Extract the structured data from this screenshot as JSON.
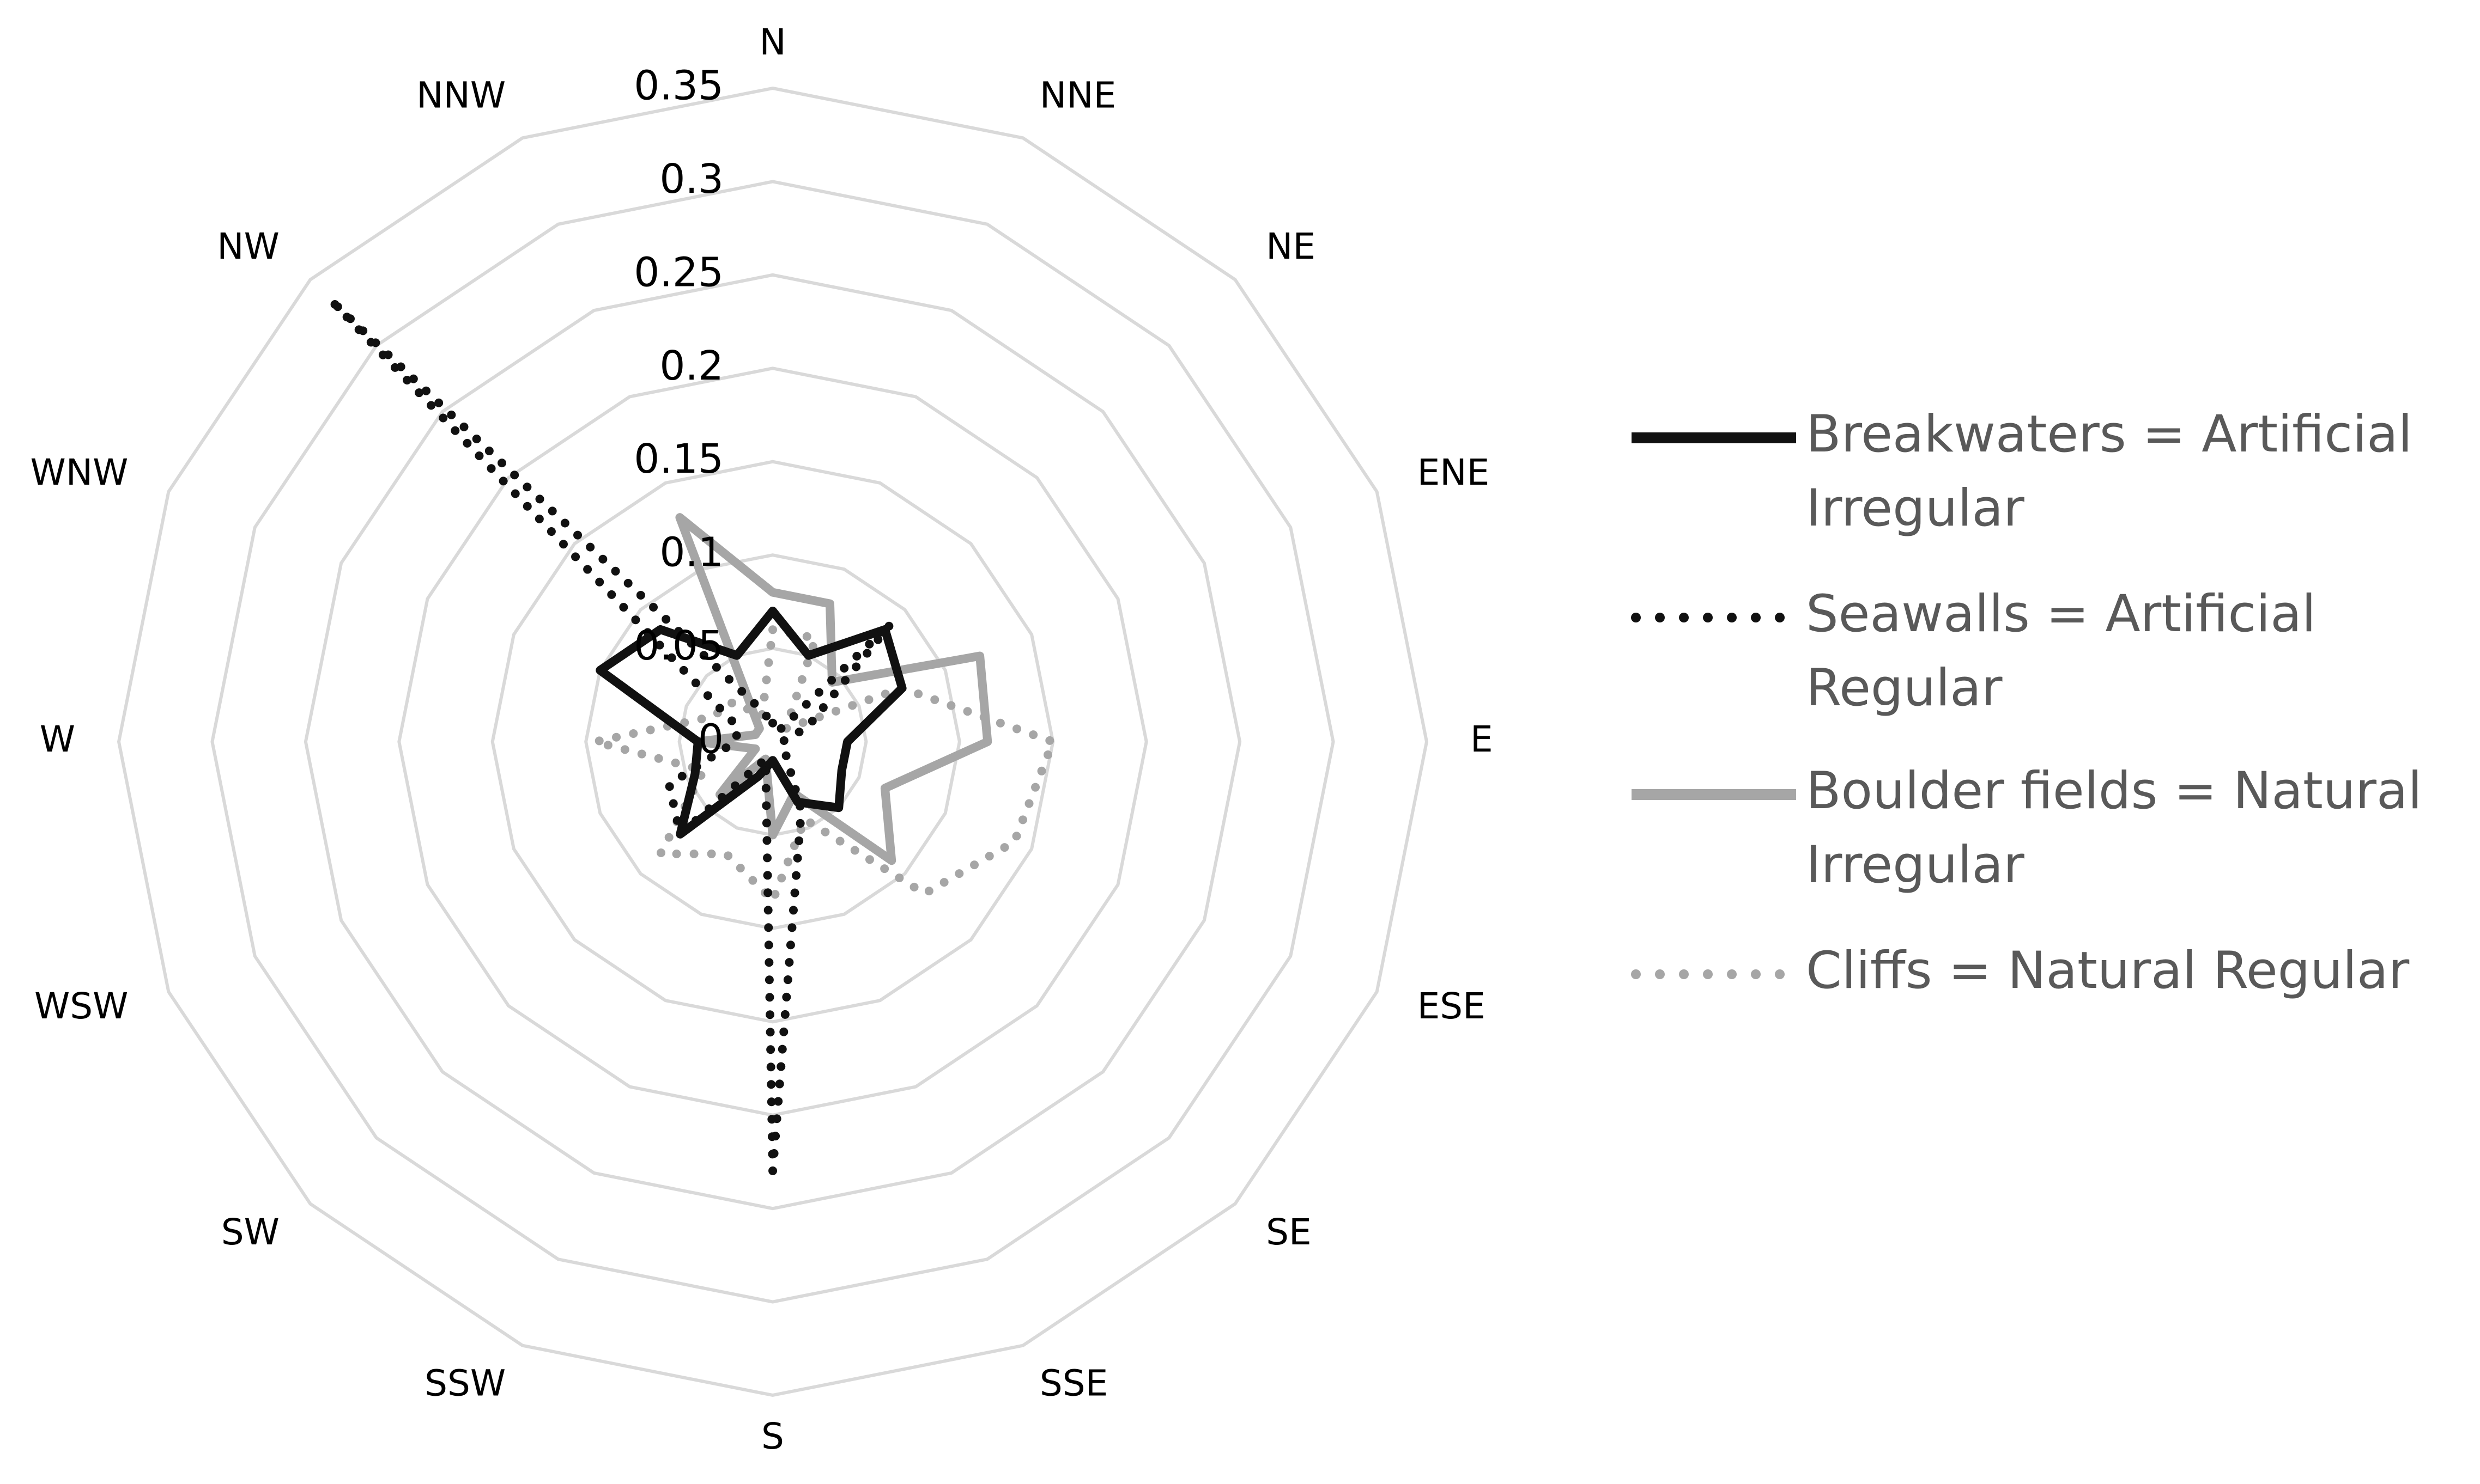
{
  "chart_data": {
    "type": "radar",
    "directions": [
      "N",
      "NNE",
      "NE",
      "ENE",
      "E",
      "ESE",
      "SE",
      "SSE",
      "S",
      "SSW",
      "SW",
      "WSW",
      "W",
      "WNW",
      "NW",
      "NNW"
    ],
    "radial_ticks": [
      "0",
      "0.05",
      "0.1",
      "0.15",
      "0.2",
      "0.25",
      "0.3",
      "0.35"
    ],
    "rlim": [
      0,
      0.35
    ],
    "grid": true,
    "legend_position": "right",
    "series": [
      {
        "name": "Breakwaters = Artificial Irregular",
        "style": "solid",
        "color": "#111111",
        "values": [
          0.07,
          0.05,
          0.085,
          0.075,
          0.04,
          0.04,
          0.05,
          0.035,
          0.01,
          0.02,
          0.07,
          0.045,
          0.04,
          0.1,
          0.085,
          0.05
        ]
      },
      {
        "name": "Seawalls = Artificial Regular",
        "style": "dotted",
        "color": "#111111",
        "values": [
          0.01,
          0.005,
          0.09,
          0.02,
          0.005,
          0.005,
          0.01,
          0.04,
          0.23,
          0.01,
          0.07,
          0.06,
          0.02,
          0.02,
          0.335,
          0.02
        ]
      },
      {
        "name": "Boulder fields = Natural Irregular",
        "style": "solid",
        "color": "#a6a6a6",
        "values": [
          0.08,
          0.08,
          0.045,
          0.12,
          0.115,
          0.065,
          0.09,
          0.03,
          0.05,
          0.01,
          0.04,
          0.01,
          0.04,
          0.01,
          0.01,
          0.13
        ]
      },
      {
        "name": "Cliffs = Natural Regular",
        "style": "dotted",
        "color": "#a6a6a6",
        "values": [
          0.06,
          0.06,
          0.01,
          0.075,
          0.15,
          0.14,
          0.115,
          0.045,
          0.085,
          0.065,
          0.085,
          0.04,
          0.095,
          0.035,
          0.03,
          0.015
        ]
      }
    ]
  }
}
